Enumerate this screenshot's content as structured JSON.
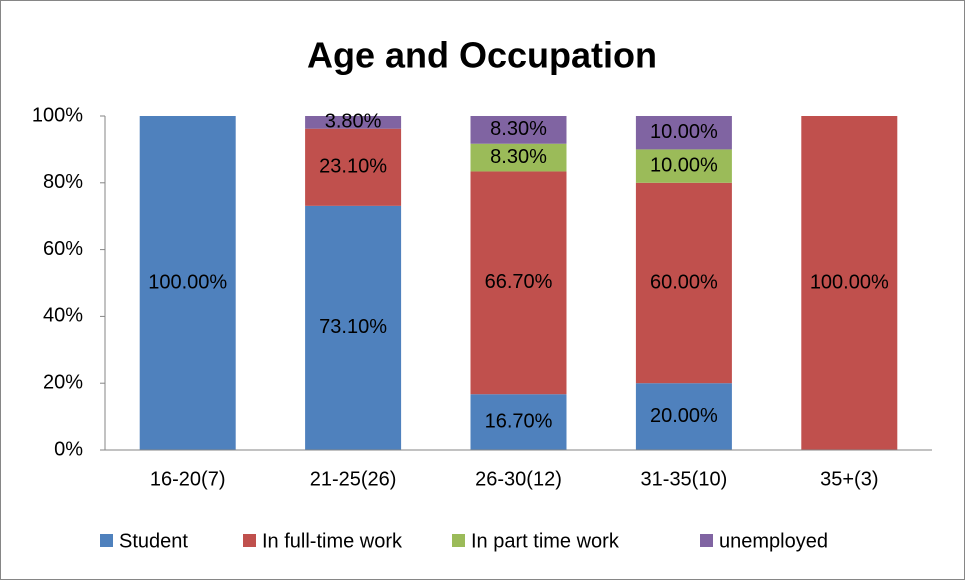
{
  "chart_data": {
    "type": "stacked_bar",
    "title": "Age and Occupation",
    "categories": [
      "16-20(7)",
      "21-25(26)",
      "26-30(12)",
      "31-35(10)",
      "35+(3)"
    ],
    "series": [
      {
        "name": "Student",
        "color": "#4f81bd",
        "values": [
          100,
          73.1,
          16.7,
          20,
          0
        ],
        "value_labels": [
          "100.00%",
          "73.10%",
          "16.70%",
          "20.00%",
          null
        ]
      },
      {
        "name": "In full-time work",
        "color": "#c0504d",
        "values": [
          0,
          23.1,
          66.7,
          60,
          100
        ],
        "value_labels": [
          null,
          "23.10%",
          "66.70%",
          "60.00%",
          "100.00%"
        ]
      },
      {
        "name": "In part time work",
        "color": "#9bbb59",
        "values": [
          0,
          0,
          8.3,
          10,
          0
        ],
        "value_labels": [
          null,
          null,
          "8.30%",
          "10.00%",
          null
        ]
      },
      {
        "name": "unemployed",
        "color": "#8064a2",
        "values": [
          0,
          3.8,
          8.3,
          10,
          0
        ],
        "value_labels": [
          null,
          "3.80%",
          "8.30%",
          "10.00%",
          null
        ]
      }
    ],
    "ylim": [
      0,
      100
    ],
    "yticks": [
      {
        "value": 0,
        "label": "0%"
      },
      {
        "value": 20,
        "label": "20%"
      },
      {
        "value": 40,
        "label": "40%"
      },
      {
        "value": 60,
        "label": "60%"
      },
      {
        "value": 80,
        "label": "80%"
      },
      {
        "value": 100,
        "label": "100%"
      }
    ],
    "grid": false,
    "legend": "bottom"
  }
}
